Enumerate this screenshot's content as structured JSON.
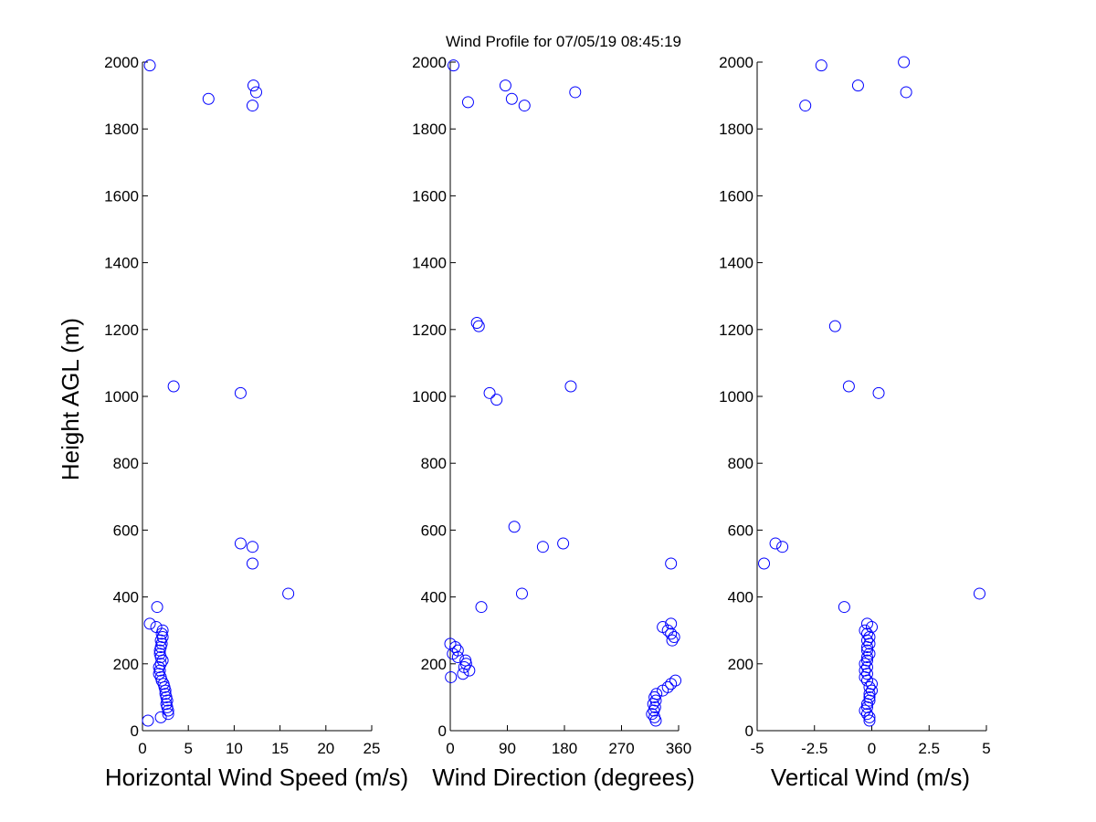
{
  "title": "Wind Profile for  07/05/19 08:45:19",
  "ylabel": "Height AGL (m)",
  "marker_color": "#0000ff",
  "chart_data": [
    {
      "type": "scatter",
      "xlabel": "Horizontal Wind Speed (m/s)",
      "xlim": [
        0,
        25
      ],
      "ylim": [
        0,
        2000
      ],
      "xticks": [
        0,
        5,
        10,
        15,
        20,
        25
      ],
      "xtick_labels": [
        "0",
        "5",
        "10",
        "15",
        "20",
        "25"
      ],
      "yticks": [
        0,
        200,
        400,
        600,
        800,
        1000,
        1200,
        1400,
        1600,
        1800,
        2000
      ],
      "ytick_labels": [
        "0",
        "200",
        "400",
        "600",
        "800",
        "1000",
        "1200",
        "1400",
        "1600",
        "1800",
        "2000"
      ],
      "points": [
        {
          "x": 0.8,
          "y": 1990
        },
        {
          "x": 7.2,
          "y": 1890
        },
        {
          "x": 12.1,
          "y": 1930
        },
        {
          "x": 12.4,
          "y": 1910
        },
        {
          "x": 12.0,
          "y": 1870
        },
        {
          "x": 3.4,
          "y": 1030
        },
        {
          "x": 10.7,
          "y": 1010
        },
        {
          "x": 10.7,
          "y": 560
        },
        {
          "x": 12.0,
          "y": 550
        },
        {
          "x": 12.0,
          "y": 500
        },
        {
          "x": 15.9,
          "y": 410
        },
        {
          "x": 1.6,
          "y": 370
        },
        {
          "x": 0.8,
          "y": 320
        },
        {
          "x": 1.5,
          "y": 310
        },
        {
          "x": 2.2,
          "y": 300
        },
        {
          "x": 2.1,
          "y": 290
        },
        {
          "x": 2.2,
          "y": 280
        },
        {
          "x": 2.0,
          "y": 270
        },
        {
          "x": 2.1,
          "y": 260
        },
        {
          "x": 2.0,
          "y": 250
        },
        {
          "x": 1.9,
          "y": 240
        },
        {
          "x": 1.9,
          "y": 230
        },
        {
          "x": 2.0,
          "y": 220
        },
        {
          "x": 2.2,
          "y": 210
        },
        {
          "x": 2.0,
          "y": 200
        },
        {
          "x": 1.8,
          "y": 190
        },
        {
          "x": 1.9,
          "y": 180
        },
        {
          "x": 1.8,
          "y": 170
        },
        {
          "x": 2.0,
          "y": 160
        },
        {
          "x": 2.1,
          "y": 150
        },
        {
          "x": 2.3,
          "y": 140
        },
        {
          "x": 2.4,
          "y": 130
        },
        {
          "x": 2.5,
          "y": 120
        },
        {
          "x": 2.5,
          "y": 110
        },
        {
          "x": 2.6,
          "y": 100
        },
        {
          "x": 2.7,
          "y": 90
        },
        {
          "x": 2.6,
          "y": 80
        },
        {
          "x": 2.7,
          "y": 70
        },
        {
          "x": 2.8,
          "y": 60
        },
        {
          "x": 2.8,
          "y": 50
        },
        {
          "x": 2.0,
          "y": 40
        },
        {
          "x": 0.6,
          "y": 30
        }
      ]
    },
    {
      "type": "scatter",
      "xlabel": "Wind Direction (degrees)",
      "xlim": [
        0,
        360
      ],
      "ylim": [
        0,
        2000
      ],
      "xticks": [
        0,
        90,
        180,
        270,
        360
      ],
      "xtick_labels": [
        "0",
        "90",
        "180",
        "270",
        "360"
      ],
      "yticks": [
        0,
        200,
        400,
        600,
        800,
        1000,
        1200,
        1400,
        1600,
        1800,
        2000
      ],
      "ytick_labels": [
        "0",
        "200",
        "400",
        "600",
        "800",
        "1000",
        "1200",
        "1400",
        "1600",
        "1800",
        "2000"
      ],
      "points": [
        {
          "x": 5,
          "y": 1990
        },
        {
          "x": 28,
          "y": 1880
        },
        {
          "x": 87,
          "y": 1930
        },
        {
          "x": 97,
          "y": 1890
        },
        {
          "x": 117,
          "y": 1870
        },
        {
          "x": 197,
          "y": 1910
        },
        {
          "x": 42,
          "y": 1220
        },
        {
          "x": 45,
          "y": 1210
        },
        {
          "x": 62,
          "y": 1010
        },
        {
          "x": 73,
          "y": 990
        },
        {
          "x": 190,
          "y": 1030
        },
        {
          "x": 101,
          "y": 610
        },
        {
          "x": 146,
          "y": 550
        },
        {
          "x": 178,
          "y": 560
        },
        {
          "x": 348,
          "y": 500
        },
        {
          "x": 113,
          "y": 410
        },
        {
          "x": 49,
          "y": 370
        },
        {
          "x": 348,
          "y": 320
        },
        {
          "x": 335,
          "y": 310
        },
        {
          "x": 343,
          "y": 300
        },
        {
          "x": 348,
          "y": 290
        },
        {
          "x": 353,
          "y": 280
        },
        {
          "x": 350,
          "y": 270
        },
        {
          "x": 0,
          "y": 260
        },
        {
          "x": 8,
          "y": 250
        },
        {
          "x": 12,
          "y": 240
        },
        {
          "x": 4,
          "y": 230
        },
        {
          "x": 12,
          "y": 220
        },
        {
          "x": 24,
          "y": 210
        },
        {
          "x": 25,
          "y": 200
        },
        {
          "x": 22,
          "y": 190
        },
        {
          "x": 30,
          "y": 180
        },
        {
          "x": 20,
          "y": 170
        },
        {
          "x": 1,
          "y": 160
        },
        {
          "x": 355,
          "y": 150
        },
        {
          "x": 348,
          "y": 140
        },
        {
          "x": 343,
          "y": 130
        },
        {
          "x": 335,
          "y": 120
        },
        {
          "x": 325,
          "y": 110
        },
        {
          "x": 322,
          "y": 100
        },
        {
          "x": 324,
          "y": 90
        },
        {
          "x": 320,
          "y": 80
        },
        {
          "x": 323,
          "y": 70
        },
        {
          "x": 321,
          "y": 60
        },
        {
          "x": 318,
          "y": 50
        },
        {
          "x": 322,
          "y": 40
        },
        {
          "x": 324,
          "y": 30
        }
      ]
    },
    {
      "type": "scatter",
      "xlabel": "Vertical Wind (m/s)",
      "xlim": [
        -5,
        5
      ],
      "ylim": [
        0,
        2000
      ],
      "xticks": [
        -5,
        -2.5,
        0,
        2.5,
        5
      ],
      "xtick_labels": [
        "-5",
        "-2.5",
        "0",
        "2.5",
        "5"
      ],
      "yticks": [
        0,
        200,
        400,
        600,
        800,
        1000,
        1200,
        1400,
        1600,
        1800,
        2000
      ],
      "ytick_labels": [
        "0",
        "200",
        "400",
        "600",
        "800",
        "1000",
        "1200",
        "1400",
        "1600",
        "1800",
        "2000"
      ],
      "points": [
        {
          "x": 1.4,
          "y": 2000
        },
        {
          "x": -2.2,
          "y": 1990
        },
        {
          "x": -0.6,
          "y": 1930
        },
        {
          "x": 1.5,
          "y": 1910
        },
        {
          "x": -2.9,
          "y": 1870
        },
        {
          "x": -1.6,
          "y": 1210
        },
        {
          "x": -1.0,
          "y": 1030
        },
        {
          "x": 0.3,
          "y": 1010
        },
        {
          "x": -4.2,
          "y": 560
        },
        {
          "x": -3.9,
          "y": 550
        },
        {
          "x": -4.7,
          "y": 500
        },
        {
          "x": 4.7,
          "y": 410
        },
        {
          "x": -1.2,
          "y": 370
        },
        {
          "x": -0.2,
          "y": 320
        },
        {
          "x": 0.0,
          "y": 310
        },
        {
          "x": -0.3,
          "y": 300
        },
        {
          "x": -0.2,
          "y": 290
        },
        {
          "x": -0.1,
          "y": 280
        },
        {
          "x": -0.2,
          "y": 270
        },
        {
          "x": -0.1,
          "y": 260
        },
        {
          "x": -0.2,
          "y": 250
        },
        {
          "x": -0.2,
          "y": 240
        },
        {
          "x": -0.1,
          "y": 230
        },
        {
          "x": -0.2,
          "y": 220
        },
        {
          "x": -0.2,
          "y": 210
        },
        {
          "x": -0.3,
          "y": 200
        },
        {
          "x": -0.2,
          "y": 190
        },
        {
          "x": -0.3,
          "y": 180
        },
        {
          "x": -0.2,
          "y": 170
        },
        {
          "x": -0.3,
          "y": 160
        },
        {
          "x": -0.2,
          "y": 150
        },
        {
          "x": 0.0,
          "y": 140
        },
        {
          "x": -0.1,
          "y": 130
        },
        {
          "x": 0.0,
          "y": 120
        },
        {
          "x": -0.1,
          "y": 110
        },
        {
          "x": -0.1,
          "y": 100
        },
        {
          "x": -0.1,
          "y": 90
        },
        {
          "x": -0.2,
          "y": 80
        },
        {
          "x": -0.2,
          "y": 70
        },
        {
          "x": -0.3,
          "y": 60
        },
        {
          "x": -0.2,
          "y": 50
        },
        {
          "x": -0.1,
          "y": 40
        },
        {
          "x": -0.1,
          "y": 30
        }
      ]
    }
  ]
}
